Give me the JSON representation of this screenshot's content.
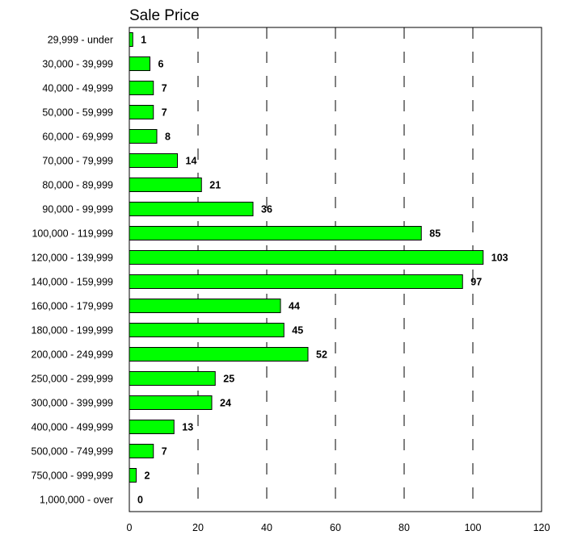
{
  "chart_data": {
    "type": "bar",
    "orientation": "horizontal",
    "title": "Sale Price",
    "xlabel": "",
    "ylabel": "",
    "xlim": [
      0,
      120
    ],
    "x_ticks": [
      "0",
      "20",
      "40",
      "60",
      "80",
      "100",
      "120"
    ],
    "grid": true,
    "bar_color": "#00ff00",
    "categories": [
      "29,999 - under",
      "30,000 - 39,999",
      "40,000 - 49,999",
      "50,000 - 59,999",
      "60,000 - 69,999",
      "70,000 - 79,999",
      "80,000 - 89,999",
      "90,000 - 99,999",
      "100,000 - 119,999",
      "120,000 - 139,999",
      "140,000 - 159,999",
      "160,000 - 179,999",
      "180,000 - 199,999",
      "200,000 - 249,999",
      "250,000 - 299,999",
      "300,000 - 399,999",
      "400,000 - 499,999",
      "500,000 - 749,999",
      "750,000 - 999,999",
      "1,000,000 - over"
    ],
    "values": [
      1,
      6,
      7,
      7,
      8,
      14,
      21,
      36,
      85,
      103,
      97,
      44,
      45,
      52,
      25,
      24,
      13,
      7,
      2,
      0
    ]
  }
}
